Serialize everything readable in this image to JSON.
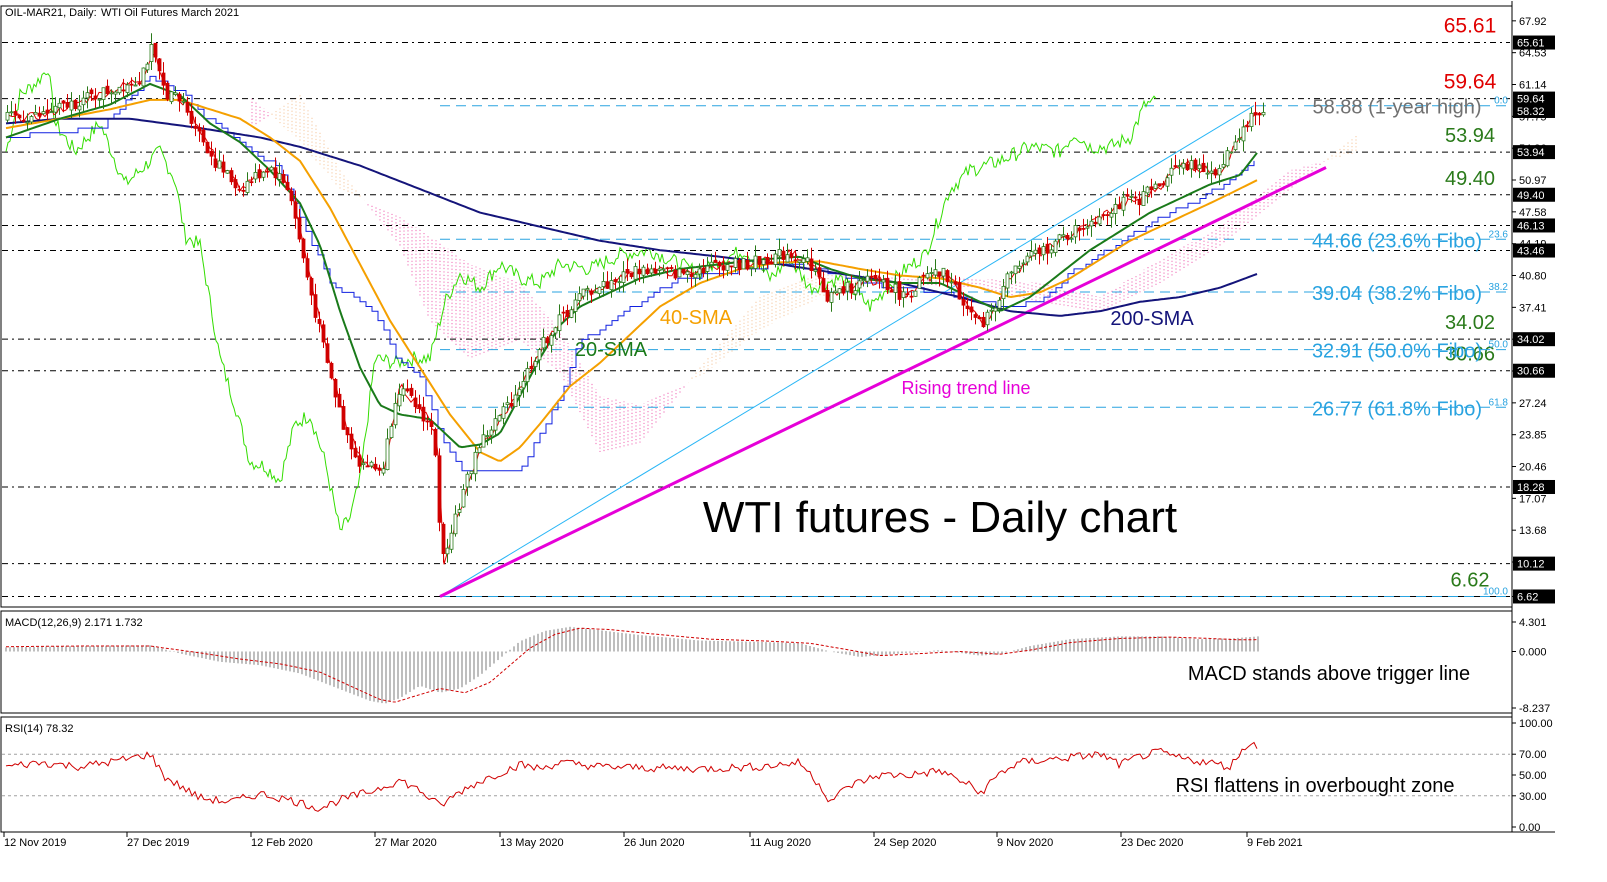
{
  "header": {
    "symbol": "OIL-MAR21, Daily:",
    "description": "WTI Oil Futures March 2021"
  },
  "watermark_title": "WTI futures - Daily chart",
  "price_axis_ticks": [
    "67.92",
    "64.53",
    "61.14",
    "57.75",
    "54.36",
    "50.97",
    "47.58",
    "44.19",
    "40.80",
    "37.41",
    "34.02",
    "30.63",
    "27.24",
    "23.85",
    "20.46",
    "17.07",
    "13.68",
    "10.29",
    "6.62"
  ],
  "price_axis_ticks_values": [
    67.92,
    64.53,
    61.14,
    57.75,
    54.36,
    50.97,
    47.58,
    44.19,
    40.8,
    37.41,
    34.02,
    30.63,
    27.24,
    23.85,
    20.46,
    17.07,
    13.68,
    10.29,
    6.62
  ],
  "horizontal_levels": [
    {
      "value": 65.61,
      "box": "65.61",
      "label": "65.61",
      "label_color": "#e00000"
    },
    {
      "value": 59.64,
      "box": "59.64",
      "label": "59.64",
      "label_color": "#e00000"
    },
    {
      "value": 53.94,
      "box": "53.94",
      "label": "53.94",
      "label_color": "#2a7a1a"
    },
    {
      "value": 49.4,
      "box": "49.40",
      "label": "49.40",
      "label_color": "#2a7a1a"
    },
    {
      "value": 46.13,
      "box": "46.13",
      "label": "",
      "label_color": "#2a7a1a"
    },
    {
      "value": 43.46,
      "box": "43.46",
      "label": "",
      "label_color": "#2a7a1a"
    },
    {
      "value": 34.02,
      "box": "34.02",
      "label": "34.02",
      "label_color": "#2a7a1a"
    },
    {
      "value": 30.66,
      "box": "30.66",
      "label": "30.66",
      "label_color": "#2a7a1a"
    },
    {
      "value": 18.28,
      "box": "18.28",
      "label": "",
      "label_color": "#2a7a1a"
    },
    {
      "value": 10.12,
      "box": "10.12",
      "label": "",
      "label_color": "#2a7a1a"
    },
    {
      "value": 6.62,
      "box": "6.62",
      "label": "6.62",
      "label_color": "#2a7a1a"
    }
  ],
  "extra_price_box": {
    "value": 58.32,
    "text": "58.32"
  },
  "fibonacci_levels": [
    {
      "value": 58.88,
      "tag": "0.0",
      "label": "58.88 (1-year high)",
      "label_color": "#707070"
    },
    {
      "value": 44.66,
      "tag": "23.6",
      "label": "44.66 (23.6% Fibo)",
      "label_color": "#29a3e0"
    },
    {
      "value": 39.04,
      "tag": "38.2",
      "label": "39.04 (38.2% Fibo)",
      "label_color": "#29a3e0"
    },
    {
      "value": 32.91,
      "tag": "50.0",
      "label": "32.91 (50.0% Fibo)",
      "label_color": "#29a3e0"
    },
    {
      "value": 26.77,
      "tag": "61.8",
      "label": "26.77 (61.8% Fibo)",
      "label_color": "#29a3e0"
    },
    {
      "value": 6.62,
      "tag": "100.0",
      "label": "",
      "label_color": "#29a3e0"
    }
  ],
  "annotations": {
    "sma40": "40-SMA",
    "sma20": "20-SMA",
    "sma200": "200-SMA",
    "trend": "Rising trend line"
  },
  "macd": {
    "label": "MACD(12,26,9) 2.171 1.732",
    "axis_ticks": [
      "4.301",
      "0.000",
      "-8.237"
    ],
    "axis_values": [
      4.301,
      0.0,
      -8.237
    ],
    "comment": "MACD stands above trigger line"
  },
  "rsi": {
    "label": "RSI(14) 78.32",
    "axis_ticks": [
      "100.00",
      "70.00",
      "50.00",
      "30.00",
      "0.00"
    ],
    "axis_values": [
      100,
      70,
      50,
      30,
      0
    ],
    "comment": "RSI flattens in overbought zone"
  },
  "time_axis": [
    "12 Nov 2019",
    "27 Dec 2019",
    "12 Feb 2020",
    "27 Mar 2020",
    "13 May 2020",
    "26 Jun 2020",
    "11 Aug 2020",
    "24 Sep 2020",
    "9 Nov 2020",
    "23 Dec 2020",
    "9 Feb 2021"
  ],
  "colors": {
    "bull": "#2a7a1a",
    "bear": "#d00000",
    "sma20": "#1a7a1a",
    "sma40": "#f5a000",
    "sma200": "#14147a",
    "trend": "#e600d8",
    "channel": "#29b6f6",
    "tenkan": "#e00000",
    "kijun": "#1020e0",
    "chikou": "#33dd00"
  },
  "chart_data": {
    "type": "line",
    "title": "WTI futures - Daily chart",
    "x": [
      "12 Nov 2019",
      "27 Dec 2019",
      "12 Feb 2020",
      "27 Mar 2020",
      "13 May 2020",
      "26 Jun 2020",
      "11 Aug 2020",
      "24 Sep 2020",
      "9 Nov 2020",
      "23 Dec 2020",
      "9 Feb 2021"
    ],
    "ylim": [
      5.5,
      69.5
    ],
    "series": [
      {
        "name": "",
        "values": [
          57.8,
          61.5,
          50.5,
          22.5,
          25.5,
          39.5,
          43.0,
          39.5,
          39.0,
          48.5,
          58.3
        ]
      },
      {
        "name": "20-SMA",
        "values": [
          56.5,
          61.0,
          51.0,
          30.0,
          24.0,
          38.0,
          42.8,
          40.0,
          37.6,
          47.0,
          54.2
        ]
      },
      {
        "name": "40-SMA",
        "values": [
          56.0,
          59.5,
          55.0,
          33.0,
          21.0,
          34.0,
          42.5,
          40.8,
          38.0,
          45.0,
          51.8
        ]
      },
      {
        "name": "200-SMA",
        "values": [
          57.5,
          57.5,
          55.4,
          49.6,
          45.0,
          43.5,
          42.0,
          40.5,
          37.0,
          37.5,
          41.0
        ]
      }
    ]
  }
}
